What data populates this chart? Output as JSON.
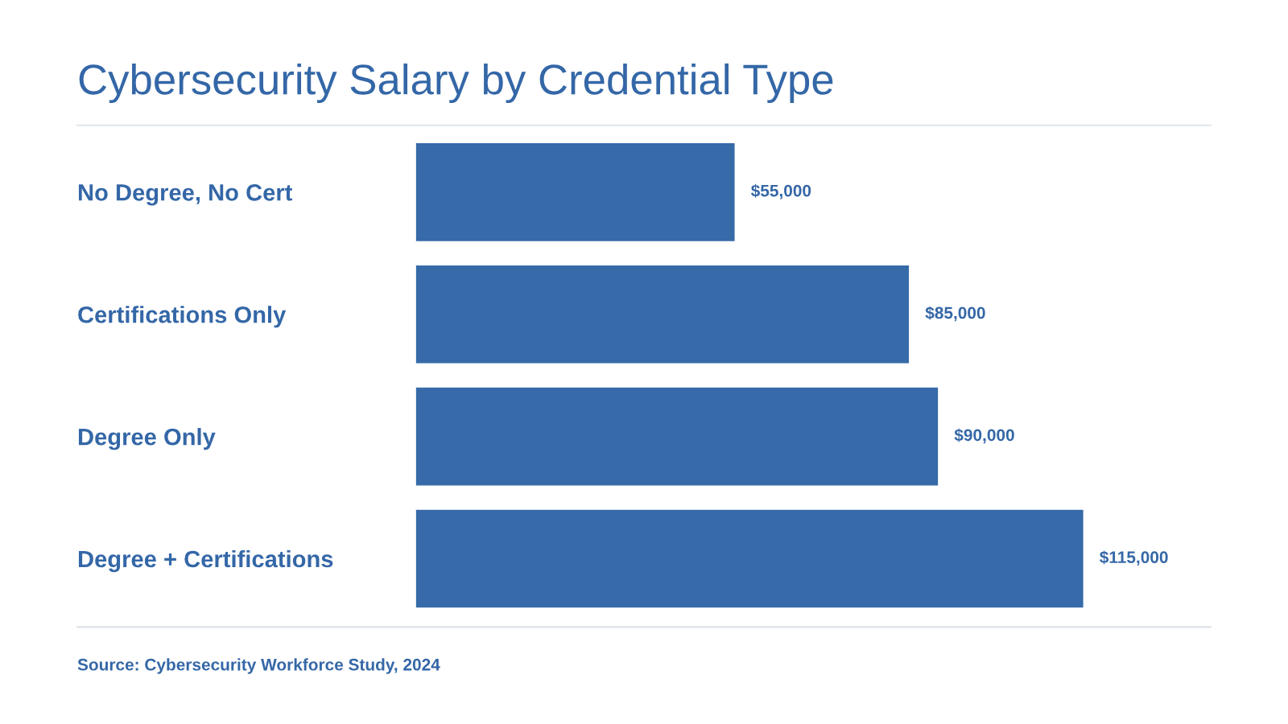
{
  "chart_data": {
    "type": "bar",
    "orientation": "horizontal",
    "title": "Cybersecurity Salary by Credential Type",
    "categories": [
      "No Degree, No Cert",
      "Certifications Only",
      "Degree Only",
      "Degree + Certifications"
    ],
    "values": [
      55000,
      85000,
      90000,
      115000
    ],
    "value_labels": [
      "$55,000",
      "$85,000",
      "$90,000",
      "$115,000"
    ],
    "color": "#366aa8",
    "annotations": [
      "Source: Cybersecurity Workforce Study, 2024"
    ],
    "grid": false,
    "legend": false
  }
}
